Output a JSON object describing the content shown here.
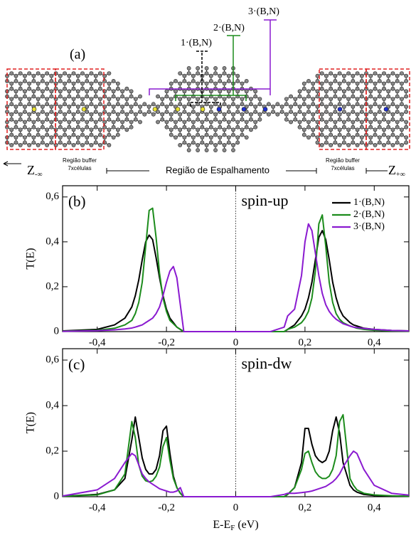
{
  "diagram": {
    "panel_label": "(a)",
    "doping_labels": [
      "1·(B,N)",
      "2·(B,N)",
      "3·(B,N)"
    ],
    "left_lead": {
      "symbol": "Z",
      "subscript": "-∞"
    },
    "left_buffer": [
      "Região buffer",
      "7xcélulas"
    ],
    "scattering_region": "Região de Espalhamento",
    "right_buffer": [
      "Região buffer",
      "7xcélulas"
    ],
    "right_lead": {
      "symbol": "Z",
      "subscript": "+∞"
    }
  },
  "chart_data": [
    {
      "type": "line",
      "panel_label": "(b)",
      "annotation": "spin-up",
      "y_label": "T(E)",
      "x": [
        -0.5,
        -0.4,
        -0.35,
        -0.32,
        -0.3,
        -0.29,
        -0.28,
        -0.27,
        -0.26,
        -0.25,
        -0.24,
        -0.23,
        -0.22,
        -0.21,
        -0.2,
        -0.19,
        -0.18,
        -0.17,
        -0.16,
        -0.15,
        -0.1,
        0,
        0.1,
        0.14,
        0.15,
        0.17,
        0.19,
        0.2,
        0.21,
        0.22,
        0.23,
        0.24,
        0.25,
        0.26,
        0.27,
        0.28,
        0.29,
        0.3,
        0.31,
        0.33,
        0.34,
        0.35,
        0.37,
        0.4,
        0.45,
        0.5
      ],
      "series": [
        {
          "name": "1·(B,N)",
          "color": "#000000",
          "values": [
            0.003,
            0.01,
            0.03,
            0.06,
            0.11,
            0.16,
            0.23,
            0.32,
            0.4,
            0.43,
            0.41,
            0.33,
            0.24,
            0.16,
            0.1,
            0.06,
            0.04,
            0.02,
            0.01,
            0,
            0,
            0,
            0,
            0,
            0.01,
            0.03,
            0.07,
            0.1,
            0.15,
            0.22,
            0.32,
            0.42,
            0.45,
            0.41,
            0.32,
            0.22,
            0.15,
            0.1,
            0.07,
            0.04,
            0.03,
            0.025,
            0.015,
            0.01,
            0.005,
            0.003
          ]
        },
        {
          "name": "2·(B,N)",
          "color": "#1c8c1c",
          "values": [
            0.002,
            0.006,
            0.015,
            0.03,
            0.05,
            0.08,
            0.13,
            0.22,
            0.38,
            0.54,
            0.55,
            0.42,
            0.26,
            0.15,
            0.09,
            0.05,
            0.035,
            0.02,
            0.01,
            0,
            0,
            0,
            0,
            0,
            0.01,
            0.02,
            0.04,
            0.06,
            0.09,
            0.15,
            0.27,
            0.48,
            0.52,
            0.38,
            0.22,
            0.13,
            0.08,
            0.055,
            0.04,
            0.025,
            0.02,
            0.015,
            0.01,
            0.006,
            0.003,
            0.002
          ]
        },
        {
          "name": "3·(B,N)",
          "color": "#8a1ad0",
          "values": [
            0.001,
            0.004,
            0.008,
            0.012,
            0.016,
            0.02,
            0.025,
            0.03,
            0.04,
            0.05,
            0.06,
            0.08,
            0.11,
            0.16,
            0.22,
            0.27,
            0.29,
            0.24,
            0.12,
            0,
            0,
            0,
            0,
            0.02,
            0.07,
            0.1,
            0.25,
            0.4,
            0.48,
            0.45,
            0.35,
            0.25,
            0.17,
            0.12,
            0.09,
            0.07,
            0.055,
            0.045,
            0.035,
            0.025,
            0.02,
            0.018,
            0.014,
            0.01,
            0.005,
            0.003
          ]
        }
      ],
      "xlim": [
        -0.5,
        0.5
      ],
      "ylim": [
        0,
        0.65
      ],
      "xticks": [
        {
          "value": -0.4,
          "label": "-0,4"
        },
        {
          "value": -0.2,
          "label": "-0,2"
        },
        0,
        {
          "value": 0.2,
          "label": "0,2"
        },
        {
          "value": 0.4,
          "label": "0,4"
        }
      ],
      "yticks": [
        0,
        {
          "value": 0.2,
          "label": "0,2"
        },
        {
          "value": 0.4,
          "label": "0,4"
        },
        {
          "value": 0.6,
          "label": "0,6"
        }
      ],
      "legend": "upper right"
    },
    {
      "type": "line",
      "panel_label": "(c)",
      "annotation": "spin-dw",
      "y_label": "T(E)",
      "x_label": {
        "main": "E-E",
        "sub": "F",
        "unit": "(eV)"
      },
      "x": [
        -0.5,
        -0.4,
        -0.35,
        -0.32,
        -0.3,
        -0.29,
        -0.28,
        -0.27,
        -0.26,
        -0.25,
        -0.24,
        -0.23,
        -0.22,
        -0.21,
        -0.2,
        -0.19,
        -0.18,
        -0.17,
        -0.16,
        -0.15,
        -0.1,
        0,
        0.1,
        0.14,
        0.15,
        0.17,
        0.19,
        0.2,
        0.21,
        0.22,
        0.23,
        0.24,
        0.25,
        0.26,
        0.27,
        0.28,
        0.29,
        0.3,
        0.31,
        0.33,
        0.34,
        0.35,
        0.37,
        0.4,
        0.45,
        0.5
      ],
      "series": [
        {
          "color": "#000000",
          "values": [
            0.002,
            0.01,
            0.03,
            0.08,
            0.25,
            0.35,
            0.26,
            0.17,
            0.12,
            0.1,
            0.1,
            0.12,
            0.18,
            0.29,
            0.31,
            0.19,
            0.09,
            0.04,
            0.015,
            0,
            0,
            0,
            0,
            0,
            0.01,
            0.04,
            0.15,
            0.3,
            0.3,
            0.23,
            0.18,
            0.16,
            0.15,
            0.16,
            0.2,
            0.29,
            0.35,
            0.28,
            0.15,
            0.05,
            0.03,
            0.02,
            0.01,
            0.005,
            0.003,
            0.002
          ]
        },
        {
          "color": "#1c8c1c",
          "values": [
            0.002,
            0.008,
            0.03,
            0.1,
            0.33,
            0.26,
            0.14,
            0.09,
            0.07,
            0.065,
            0.07,
            0.09,
            0.13,
            0.22,
            0.26,
            0.16,
            0.08,
            0.04,
            0.015,
            0,
            0,
            0,
            0,
            0,
            0.01,
            0.04,
            0.12,
            0.19,
            0.2,
            0.15,
            0.11,
            0.09,
            0.08,
            0.08,
            0.09,
            0.12,
            0.18,
            0.33,
            0.36,
            0.08,
            0.05,
            0.03,
            0.015,
            0.008,
            0.004,
            0.002
          ]
        },
        {
          "color": "#8a1ad0",
          "values": [
            0.003,
            0.03,
            0.08,
            0.15,
            0.19,
            0.18,
            0.14,
            0.1,
            0.08,
            0.065,
            0.055,
            0.045,
            0.035,
            0.03,
            0.025,
            0.02,
            0.02,
            0.025,
            0.04,
            0,
            0,
            0,
            0,
            0.01,
            0.015,
            0.015,
            0.018,
            0.02,
            0.022,
            0.025,
            0.03,
            0.035,
            0.04,
            0.045,
            0.055,
            0.065,
            0.08,
            0.1,
            0.13,
            0.18,
            0.2,
            0.19,
            0.12,
            0.05,
            0.015,
            0.007
          ]
        }
      ],
      "xlim": [
        -0.5,
        0.5
      ],
      "ylim": [
        0,
        0.65
      ],
      "xticks": [
        {
          "value": -0.4,
          "label": "-0,4"
        },
        {
          "value": -0.2,
          "label": "-0,2"
        },
        0,
        {
          "value": 0.2,
          "label": "0,2"
        },
        {
          "value": 0.4,
          "label": "0,4"
        }
      ],
      "yticks": [
        0,
        {
          "value": 0.2,
          "label": "0,2"
        },
        {
          "value": 0.4,
          "label": "0,4"
        },
        {
          "value": 0.6,
          "label": "0,6"
        }
      ]
    }
  ]
}
